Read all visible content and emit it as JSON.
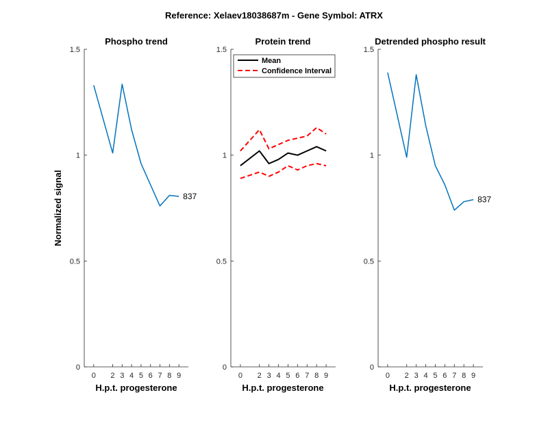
{
  "figure_title": "Reference:  Xelaev18038687m - Gene Symbol:  ATRX",
  "colors": {
    "trend": "#0072BD",
    "mean": "#000000",
    "ci": "#FF0000",
    "axis": "#262626"
  },
  "chart_data": [
    {
      "type": "line",
      "title": "Phospho trend",
      "xlabel": "H.p.t. progesterone",
      "ylabel": "Normalized signal",
      "x": [
        0,
        2,
        3,
        4,
        5,
        6,
        7,
        8,
        9
      ],
      "xticks": [
        "0",
        "2",
        "3",
        "4",
        "5",
        "6",
        "7",
        "8",
        "9"
      ],
      "ylim": [
        0,
        1.5
      ],
      "yticks": [
        "0",
        "0.5",
        "1",
        "1.5"
      ],
      "series": [
        {
          "values": [
            1.33,
            1.01,
            1.335,
            1.12,
            0.96,
            0.86,
            0.76,
            0.81,
            0.805
          ]
        }
      ],
      "end_label": "837"
    },
    {
      "type": "line",
      "title": "Protein trend",
      "xlabel": "H.p.t. progesterone",
      "ylabel": "",
      "x": [
        0,
        2,
        3,
        4,
        5,
        6,
        7,
        8,
        9
      ],
      "xticks": [
        "0",
        "2",
        "3",
        "4",
        "5",
        "6",
        "7",
        "8",
        "9"
      ],
      "ylim": [
        0,
        1.5
      ],
      "yticks": [
        "0",
        "0.5",
        "1",
        "1.5"
      ],
      "legend_position": "top-right",
      "series": [
        {
          "name": "Mean",
          "values": [
            0.95,
            1.02,
            0.96,
            0.98,
            1.01,
            1.0,
            1.02,
            1.04,
            1.02
          ]
        },
        {
          "name": "Confidence Interval",
          "values": [
            1.02,
            1.12,
            1.03,
            1.05,
            1.07,
            1.08,
            1.09,
            1.13,
            1.1
          ]
        },
        {
          "name": "",
          "values": [
            0.89,
            0.92,
            0.9,
            0.92,
            0.95,
            0.93,
            0.95,
            0.96,
            0.95
          ]
        }
      ]
    },
    {
      "type": "line",
      "title": "Detrended phospho result",
      "xlabel": "H.p.t. progesterone",
      "ylabel": "",
      "x": [
        0,
        2,
        3,
        4,
        5,
        6,
        7,
        8,
        9
      ],
      "xticks": [
        "0",
        "2",
        "3",
        "4",
        "5",
        "6",
        "7",
        "8",
        "9"
      ],
      "ylim": [
        0,
        1.5
      ],
      "yticks": [
        "0",
        "0.5",
        "1",
        "1.5"
      ],
      "series": [
        {
          "values": [
            1.39,
            0.99,
            1.38,
            1.14,
            0.95,
            0.86,
            0.74,
            0.78,
            0.79
          ]
        }
      ],
      "end_label": "837"
    }
  ]
}
